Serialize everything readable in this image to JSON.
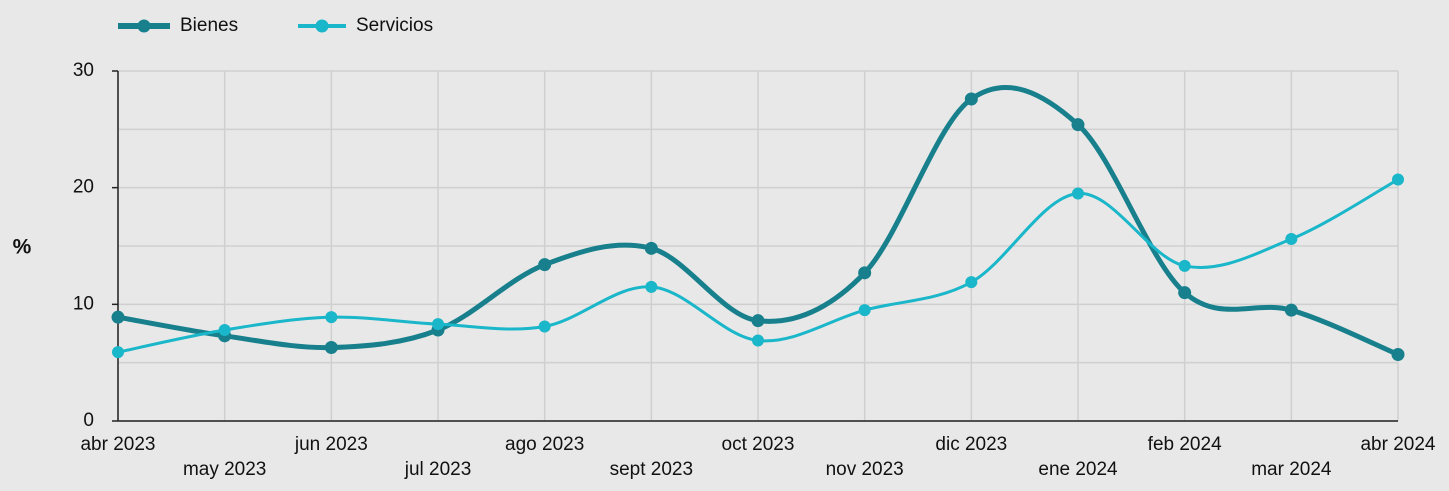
{
  "chart_data": {
    "type": "line",
    "categories": [
      "abr 2023",
      "may 2023",
      "jun 2023",
      "jul 2023",
      "ago 2023",
      "sept 2023",
      "oct 2023",
      "nov 2023",
      "dic 2023",
      "ene 2024",
      "feb 2024",
      "mar 2024",
      "abr 2024"
    ],
    "series": [
      {
        "name": "Bienes",
        "color": "#17808c",
        "values": [
          8.9,
          7.3,
          6.3,
          7.8,
          13.4,
          14.8,
          8.6,
          12.7,
          27.6,
          25.4,
          11.0,
          9.5,
          5.7
        ]
      },
      {
        "name": "Servicios",
        "color": "#1ab6c9",
        "values": [
          5.9,
          7.8,
          8.9,
          8.3,
          8.1,
          11.5,
          6.9,
          9.5,
          11.9,
          19.5,
          13.3,
          15.6,
          20.7
        ]
      }
    ],
    "ylabel": "%",
    "ylim": [
      0,
      30
    ],
    "yticks": [
      0,
      10,
      20,
      30
    ],
    "minor_yticks": [
      5,
      15,
      25
    ],
    "grid": true,
    "legend": "top"
  }
}
